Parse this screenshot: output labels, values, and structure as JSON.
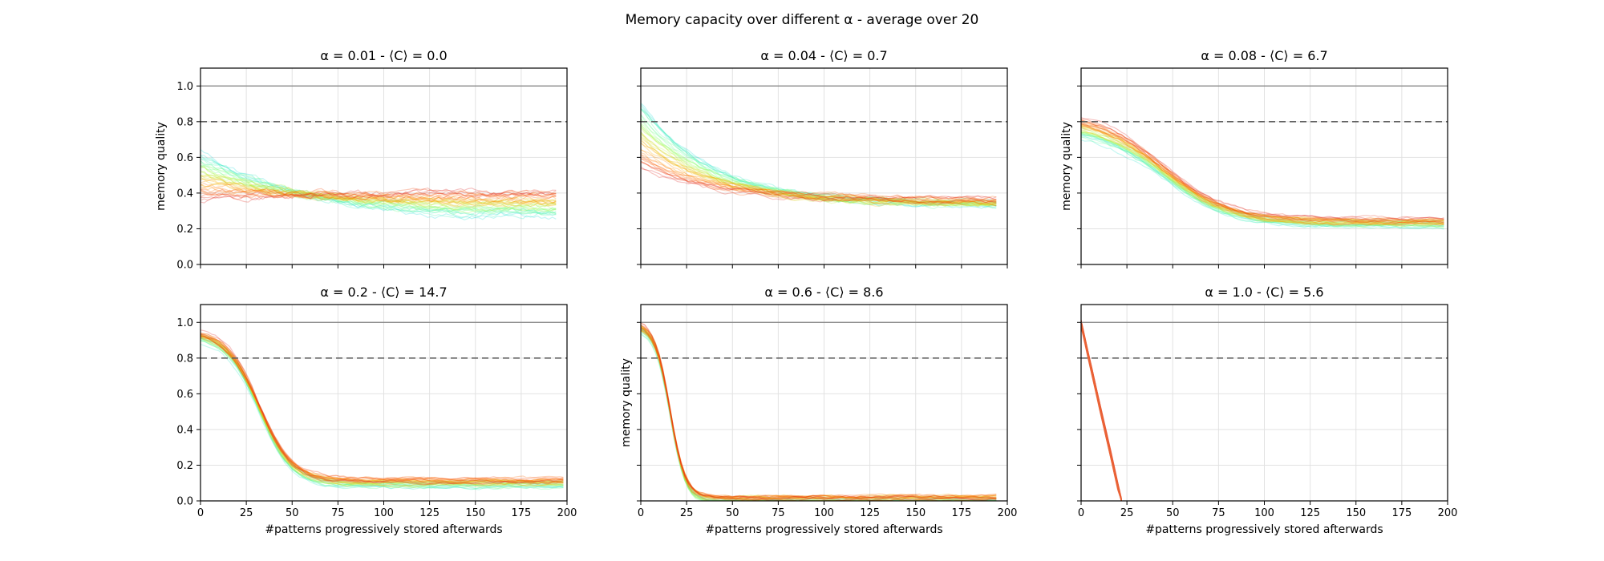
{
  "figure": {
    "suptitle": "Memory capacity over different α - average over 20"
  },
  "chart_data": [
    {
      "type": "line",
      "title": "α = 0.01 - ⟨C⟩ = 0.0",
      "xlabel": "",
      "ylabel": "memory quality",
      "xlim": [
        0,
        200
      ],
      "ylim": [
        0,
        1.1
      ],
      "xticks": [
        0,
        25,
        50,
        75,
        100,
        125,
        150,
        175,
        200
      ],
      "yticks": [
        0.0,
        0.2,
        0.4,
        0.6,
        0.8,
        1.0
      ],
      "show_xtick_labels": false,
      "show_ytick_labels": true,
      "grid": true,
      "reference_lines": [
        {
          "y": 1.0,
          "style": "solid"
        },
        {
          "y": 0.8,
          "style": "dashed"
        }
      ],
      "curve_family": {
        "n_curves": 40,
        "x_end": 195,
        "color_map": "rainbow",
        "quality_start_range": [
          0.63,
          0.37
        ],
        "quality_end_range": [
          0.28,
          0.4
        ],
        "decay": "slow"
      }
    },
    {
      "type": "line",
      "title": "α = 0.04 - ⟨C⟩ = 0.7",
      "xlabel": "",
      "ylabel": "",
      "xlim": [
        0,
        200
      ],
      "ylim": [
        0,
        1.1
      ],
      "xticks": [
        0,
        25,
        50,
        75,
        100,
        125,
        150,
        175,
        200
      ],
      "yticks": [
        0.0,
        0.2,
        0.4,
        0.6,
        0.8,
        1.0
      ],
      "show_xtick_labels": false,
      "show_ytick_labels": false,
      "grid": true,
      "reference_lines": [
        {
          "y": 1.0,
          "style": "solid"
        },
        {
          "y": 0.8,
          "style": "dashed"
        }
      ],
      "curve_family": {
        "n_curves": 40,
        "x_end": 195,
        "color_map": "rainbow",
        "quality_start_range": [
          0.9,
          0.55
        ],
        "quality_end_range": [
          0.33,
          0.36
        ],
        "decay": "medium"
      }
    },
    {
      "type": "line",
      "title": "α = 0.08 - ⟨C⟩ = 6.7",
      "xlabel": "",
      "ylabel": "memory quality",
      "xlim": [
        0,
        200
      ],
      "ylim": [
        0,
        1.1
      ],
      "xticks": [
        0,
        25,
        50,
        75,
        100,
        125,
        150,
        175,
        200
      ],
      "yticks": [
        0.0,
        0.2,
        0.4,
        0.6,
        0.8,
        1.0
      ],
      "show_xtick_labels": false,
      "show_ytick_labels": false,
      "grid": true,
      "reference_lines": [
        {
          "y": 1.0,
          "style": "solid"
        },
        {
          "y": 0.8,
          "style": "dashed"
        }
      ],
      "curve_family": {
        "n_curves": 40,
        "x_end": 198,
        "color_map": "rainbow",
        "quality_start_range": [
          0.75,
          0.86
        ],
        "quality_end_range": [
          0.22,
          0.25
        ],
        "decay": "sigmoid-slow"
      }
    },
    {
      "type": "line",
      "title": "α = 0.2 - ⟨C⟩ = 14.7",
      "xlabel": "#patterns progressively stored afterwards",
      "ylabel": "",
      "xlim": [
        0,
        200
      ],
      "ylim": [
        0,
        1.1
      ],
      "xticks": [
        0,
        25,
        50,
        75,
        100,
        125,
        150,
        175,
        200
      ],
      "yticks": [
        0.0,
        0.2,
        0.4,
        0.6,
        0.8,
        1.0
      ],
      "show_xtick_labels": true,
      "show_ytick_labels": true,
      "grid": true,
      "reference_lines": [
        {
          "y": 1.0,
          "style": "solid"
        },
        {
          "y": 0.8,
          "style": "dashed"
        }
      ],
      "curve_family": {
        "n_curves": 40,
        "x_end": 198,
        "color_map": "rainbow",
        "quality_start_range": [
          0.92,
          0.96
        ],
        "quality_end_range": [
          0.08,
          0.12
        ],
        "decay": "sigmoid-medium"
      }
    },
    {
      "type": "line",
      "title": "α = 0.6 - ⟨C⟩ = 8.6",
      "xlabel": "#patterns progressively stored afterwards",
      "ylabel": "memory quality",
      "xlim": [
        0,
        200
      ],
      "ylim": [
        0,
        1.1
      ],
      "xticks": [
        0,
        25,
        50,
        75,
        100,
        125,
        150,
        175,
        200
      ],
      "yticks": [
        0.0,
        0.2,
        0.4,
        0.6,
        0.8,
        1.0
      ],
      "show_xtick_labels": true,
      "show_ytick_labels": false,
      "grid": true,
      "reference_lines": [
        {
          "y": 1.0,
          "style": "solid"
        },
        {
          "y": 0.8,
          "style": "dashed"
        }
      ],
      "curve_family": {
        "n_curves": 40,
        "x_end": 195,
        "color_map": "rainbow",
        "quality_start_range": [
          0.97,
          1.0
        ],
        "quality_end_range": [
          0.0,
          0.02
        ],
        "decay": "sigmoid-fast"
      }
    },
    {
      "type": "line",
      "title": "α = 1.0 - ⟨C⟩ = 5.6",
      "xlabel": "#patterns progressively stored afterwards",
      "ylabel": "",
      "xlim": [
        0,
        200
      ],
      "ylim": [
        0,
        1.1
      ],
      "xticks": [
        0,
        25,
        50,
        75,
        100,
        125,
        150,
        175,
        200
      ],
      "yticks": [
        0.0,
        0.2,
        0.4,
        0.6,
        0.8,
        1.0
      ],
      "show_xtick_labels": true,
      "show_ytick_labels": false,
      "grid": true,
      "reference_lines": [
        {
          "y": 1.0,
          "style": "solid"
        },
        {
          "y": 0.8,
          "style": "dashed"
        }
      ],
      "curve_family": {
        "n_curves": 40,
        "x_end": 22,
        "color_map": "orange",
        "quality_start_range": [
          0.99,
          1.0
        ],
        "quality_end_range": [
          0.0,
          0.0
        ],
        "decay": "linear-fast"
      }
    }
  ]
}
